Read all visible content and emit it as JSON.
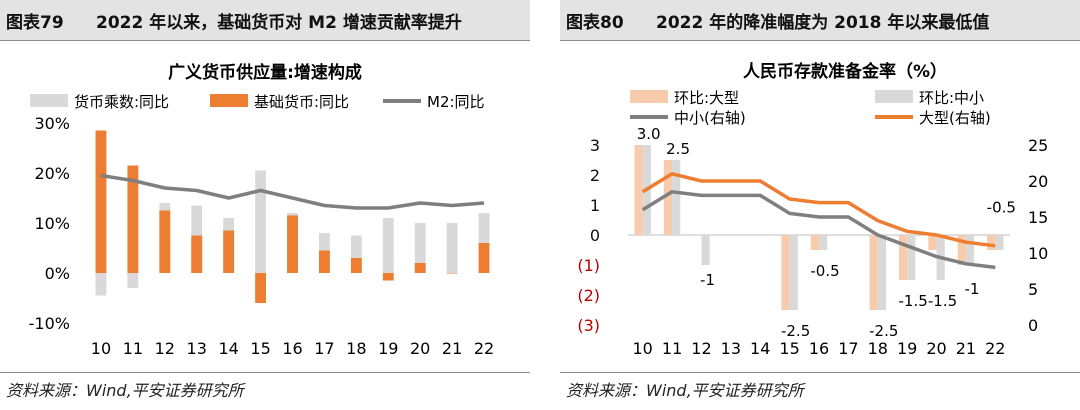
{
  "left": {
    "header_number": "图表79",
    "header_title": "2022 年以来，基础货币对 M2 增速贡献率提升",
    "source": "资料来源：Wind,平安证券研究所",
    "chart_data": {
      "type": "bar",
      "title": "广义货币供应量:增速构成",
      "categories": [
        "10",
        "11",
        "12",
        "13",
        "14",
        "15",
        "16",
        "17",
        "18",
        "19",
        "20",
        "21",
        "22"
      ],
      "y_ticks": [
        "30%",
        "20%",
        "10%",
        "0%",
        "-10%"
      ],
      "ylim": [
        -10,
        30
      ],
      "series": [
        {
          "name": "货币乘数:同比",
          "kind": "bar",
          "color": "#d9d9d9",
          "values": [
            -4.5,
            -3,
            14,
            13.5,
            11,
            20.5,
            12,
            8,
            7.5,
            11,
            10,
            10,
            12
          ]
        },
        {
          "name": "基础货币:同比",
          "kind": "bar",
          "color": "#ed7d31",
          "values": [
            28.5,
            21.5,
            12.5,
            7.5,
            8.5,
            -6,
            11.5,
            4.5,
            3,
            -1.5,
            2,
            0,
            6
          ]
        },
        {
          "name": "M2:同比",
          "kind": "line",
          "color": "#7f7f7f",
          "values": [
            19.5,
            18.5,
            17,
            16.5,
            15,
            16.5,
            15,
            13.5,
            13,
            13,
            14,
            13.5,
            14
          ]
        }
      ]
    }
  },
  "right": {
    "header_number": "图表80",
    "header_title": "2022 年的降准幅度为 2018 年以来最低值",
    "source": "资料来源：Wind,平安证券研究所",
    "chart_data": {
      "type": "bar",
      "title": "人民币存款准备金率（%）",
      "categories": [
        "10",
        "11",
        "12",
        "13",
        "14",
        "15",
        "16",
        "17",
        "18",
        "19",
        "20",
        "21",
        "22"
      ],
      "y_left_ticks": [
        "3",
        "2",
        "1",
        "0",
        "(1)",
        "(2)",
        "(3)"
      ],
      "y_right_ticks": [
        "25",
        "20",
        "15",
        "10",
        "5",
        "0"
      ],
      "ylim_left": [
        -3,
        3
      ],
      "ylim_right": [
        0,
        25
      ],
      "series": [
        {
          "name": "环比:大型",
          "kind": "bar",
          "axis": "left",
          "color": "#f8cbad",
          "values": [
            3.0,
            2.5,
            0,
            0,
            0,
            -2.5,
            -0.5,
            0,
            -2.5,
            -1.5,
            -0.5,
            -1,
            -0.5
          ]
        },
        {
          "name": "环比:中小",
          "kind": "bar",
          "axis": "left",
          "color": "#d9d9d9",
          "values": [
            3.0,
            2.5,
            -1,
            0,
            0,
            -2.5,
            -0.5,
            0,
            -2.5,
            -1.5,
            -1.5,
            -1,
            -0.5
          ]
        },
        {
          "name": "中小(右轴)",
          "kind": "line",
          "axis": "right",
          "color": "#7f7f7f",
          "values": [
            16,
            18.5,
            18,
            18,
            18,
            15.5,
            15,
            15,
            12.5,
            11,
            9.5,
            8.5,
            8
          ]
        },
        {
          "name": "大型(右轴)",
          "kind": "line",
          "axis": "right",
          "color": "#ed7d31",
          "values": [
            18.5,
            21,
            20,
            20,
            20,
            17.5,
            17,
            17,
            14.5,
            13,
            12.5,
            11.5,
            11
          ]
        }
      ],
      "data_labels": [
        {
          "text": "3.0",
          "i": 0,
          "y": 3.0
        },
        {
          "text": "2.5",
          "i": 1,
          "y": 2.5
        },
        {
          "text": "-1",
          "i": 2,
          "y": -1.2
        },
        {
          "text": "-0.5",
          "i": 6,
          "y": -0.9
        },
        {
          "text": "-2.5",
          "i": 5,
          "y": -2.9
        },
        {
          "text": "-2.5",
          "i": 8,
          "y": -2.9
        },
        {
          "text": "-1.5",
          "i": 9,
          "y": -1.9
        },
        {
          "text": "-1.5",
          "i": 10,
          "y": -1.9
        },
        {
          "text": "-1",
          "i": 11,
          "y": -1.5
        },
        {
          "text": "-0.5",
          "i": 12,
          "y": 0.55
        }
      ]
    }
  }
}
